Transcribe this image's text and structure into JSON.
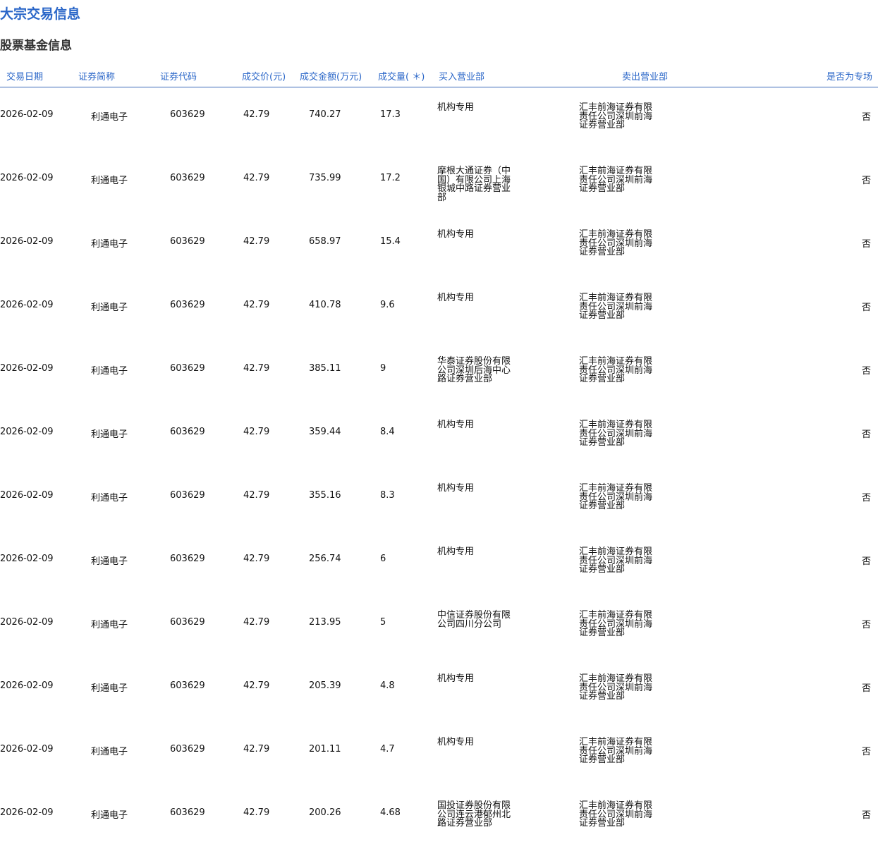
{
  "title": "大宗交易信息",
  "subtitle": "股票基金信息",
  "headers": [
    "交易日期",
    "证券简称",
    "证券代码",
    "成交价(元)",
    "成交金额(万元)",
    "成交量( ＊)",
    "买入营业部",
    "卖出营业部",
    "是否为专场"
  ],
  "rows": [
    {
      "date": "2026-02-09",
      "name": "利通电子",
      "code": "603629",
      "price": "42.79",
      "amount": "740.27",
      "volume": "17.3",
      "buy": "机构专用",
      "sell": "汇丰前海证券有限责任公司深圳前海证券营业部",
      "special": "否"
    },
    {
      "date": "2026-02-09",
      "name": "利通电子",
      "code": "603629",
      "price": "42.79",
      "amount": "735.99",
      "volume": "17.2",
      "buy": "摩根大通证券（中国）有限公司上海银城中路证券营业部",
      "sell": "汇丰前海证券有限责任公司深圳前海证券营业部",
      "special": "否"
    },
    {
      "date": "2026-02-09",
      "name": "利通电子",
      "code": "603629",
      "price": "42.79",
      "amount": "658.97",
      "volume": "15.4",
      "buy": "机构专用",
      "sell": "汇丰前海证券有限责任公司深圳前海证券营业部",
      "special": "否"
    },
    {
      "date": "2026-02-09",
      "name": "利通电子",
      "code": "603629",
      "price": "42.79",
      "amount": "410.78",
      "volume": "9.6",
      "buy": "机构专用",
      "sell": "汇丰前海证券有限责任公司深圳前海证券营业部",
      "special": "否"
    },
    {
      "date": "2026-02-09",
      "name": "利通电子",
      "code": "603629",
      "price": "42.79",
      "amount": "385.11",
      "volume": "9",
      "buy": "华泰证券股份有限公司深圳后海中心路证券营业部",
      "sell": "汇丰前海证券有限责任公司深圳前海证券营业部",
      "special": "否"
    },
    {
      "date": "2026-02-09",
      "name": "利通电子",
      "code": "603629",
      "price": "42.79",
      "amount": "359.44",
      "volume": "8.4",
      "buy": "机构专用",
      "sell": "汇丰前海证券有限责任公司深圳前海证券营业部",
      "special": "否"
    },
    {
      "date": "2026-02-09",
      "name": "利通电子",
      "code": "603629",
      "price": "42.79",
      "amount": "355.16",
      "volume": "8.3",
      "buy": "机构专用",
      "sell": "汇丰前海证券有限责任公司深圳前海证券营业部",
      "special": "否"
    },
    {
      "date": "2026-02-09",
      "name": "利通电子",
      "code": "603629",
      "price": "42.79",
      "amount": "256.74",
      "volume": "6",
      "buy": "机构专用",
      "sell": "汇丰前海证券有限责任公司深圳前海证券营业部",
      "special": "否"
    },
    {
      "date": "2026-02-09",
      "name": "利通电子",
      "code": "603629",
      "price": "42.79",
      "amount": "213.95",
      "volume": "5",
      "buy": "中信证券股份有限公司四川分公司",
      "sell": "汇丰前海证券有限责任公司深圳前海证券营业部",
      "special": "否"
    },
    {
      "date": "2026-02-09",
      "name": "利通电子",
      "code": "603629",
      "price": "42.79",
      "amount": "205.39",
      "volume": "4.8",
      "buy": "机构专用",
      "sell": "汇丰前海证券有限责任公司深圳前海证券营业部",
      "special": "否"
    },
    {
      "date": "2026-02-09",
      "name": "利通电子",
      "code": "603629",
      "price": "42.79",
      "amount": "201.11",
      "volume": "4.7",
      "buy": "机构专用",
      "sell": "汇丰前海证券有限责任公司深圳前海证券营业部",
      "special": "否"
    },
    {
      "date": "2026-02-09",
      "name": "利通电子",
      "code": "603629",
      "price": "42.79",
      "amount": "200.26",
      "volume": "4.68",
      "buy": "国投证券股份有限公司连云港郁州北路证券营业部",
      "sell": "汇丰前海证券有限责任公司深圳前海证券营业部",
      "special": "否"
    }
  ]
}
